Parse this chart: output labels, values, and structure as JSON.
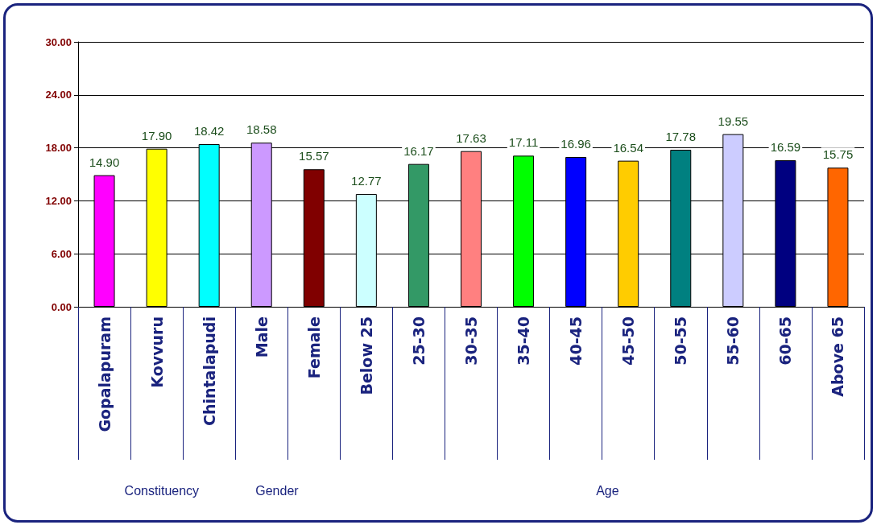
{
  "chart_data": {
    "type": "bar",
    "categories": [
      "Gopalapuram",
      "Kovvuru",
      "Chintalapudi",
      "Male",
      "Female",
      "Below 25",
      "25-30",
      "30-35",
      "35-40",
      "40-45",
      "45-50",
      "50-55",
      "55-60",
      "60-65",
      "Above 65"
    ],
    "values": [
      14.9,
      17.9,
      18.42,
      18.58,
      15.57,
      12.77,
      16.17,
      17.63,
      17.11,
      16.96,
      16.54,
      17.78,
      19.55,
      16.59,
      15.75
    ],
    "value_labels": [
      "14.90",
      "17.90",
      "18.42",
      "18.58",
      "15.57",
      "12.77",
      "16.17",
      "17.63",
      "17.11",
      "16.96",
      "16.54",
      "17.78",
      "19.55",
      "16.59",
      "15.75"
    ],
    "colors": [
      "#ff00ff",
      "#ffff00",
      "#00ffff",
      "#cc99ff",
      "#800000",
      "#ccffff",
      "#339966",
      "#ff8080",
      "#00ff00",
      "#0000ff",
      "#ffcc00",
      "#008080",
      "#ccccff",
      "#000080",
      "#ff6600"
    ],
    "ylim": [
      0,
      30
    ],
    "yticks": [
      {
        "value": 0,
        "label": "0.00"
      },
      {
        "value": 6,
        "label": "6.00"
      },
      {
        "value": 12,
        "label": "12.00"
      },
      {
        "value": 18,
        "label": "18.00"
      },
      {
        "value": 24,
        "label": "24.00"
      },
      {
        "value": 30,
        "label": "30.00"
      }
    ],
    "grid": "y",
    "annotations": [
      "Constituency",
      "Gender",
      "Age"
    ]
  }
}
